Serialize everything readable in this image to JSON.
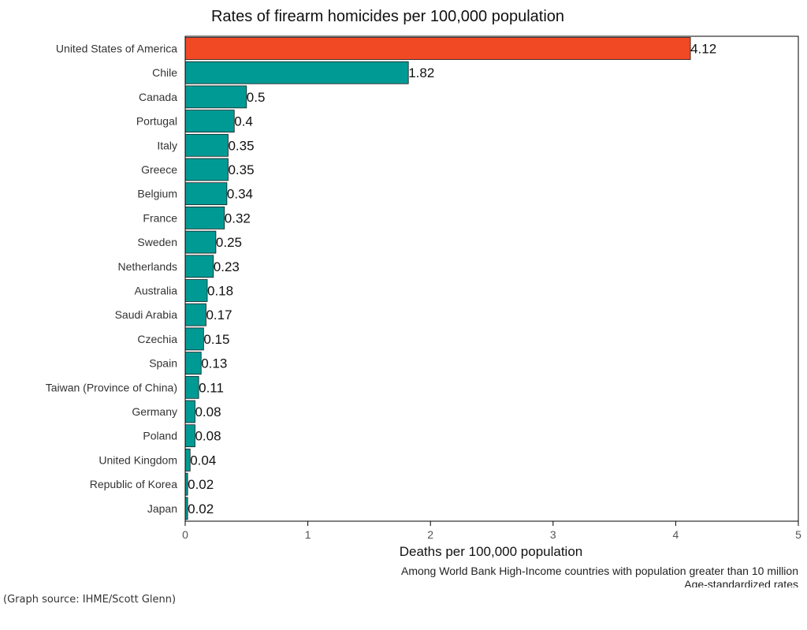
{
  "chart_data": {
    "type": "bar",
    "orientation": "horizontal",
    "title": "Rates of firearm homicides per 100,000 population",
    "xlabel": "Deaths per 100,000 population",
    "ylabel": "",
    "xlim": [
      0,
      5
    ],
    "xticks": [
      0,
      1,
      2,
      3,
      4,
      5
    ],
    "grid": false,
    "legend": "none",
    "categories": [
      "United States of America",
      "Chile",
      "Canada",
      "Portugal",
      "Italy",
      "Greece",
      "Belgium",
      "France",
      "Sweden",
      "Netherlands",
      "Australia",
      "Saudi Arabia",
      "Czechia",
      "Spain",
      "Taiwan (Province of China)",
      "Germany",
      "Poland",
      "United Kingdom",
      "Republic of Korea",
      "Japan"
    ],
    "values": [
      4.12,
      1.82,
      0.5,
      0.4,
      0.35,
      0.35,
      0.34,
      0.32,
      0.25,
      0.23,
      0.18,
      0.17,
      0.15,
      0.13,
      0.11,
      0.08,
      0.08,
      0.04,
      0.02,
      0.02
    ],
    "value_labels": [
      "4.12",
      "1.82",
      "0.5",
      "0.4",
      "0.35",
      "0.35",
      "0.34",
      "0.32",
      "0.25",
      "0.23",
      "0.18",
      "0.17",
      "0.15",
      "0.13",
      "0.11",
      "0.08",
      "0.08",
      "0.04",
      "0.02",
      "0.02"
    ],
    "highlight_color": "#f04923",
    "bar_color": "#009a94",
    "notes": [
      "Among World Bank High-Income countries with population greater than 10 million",
      "Age-standardized rates"
    ]
  },
  "source_text": "(Graph source: IHME/Scott Glenn)"
}
